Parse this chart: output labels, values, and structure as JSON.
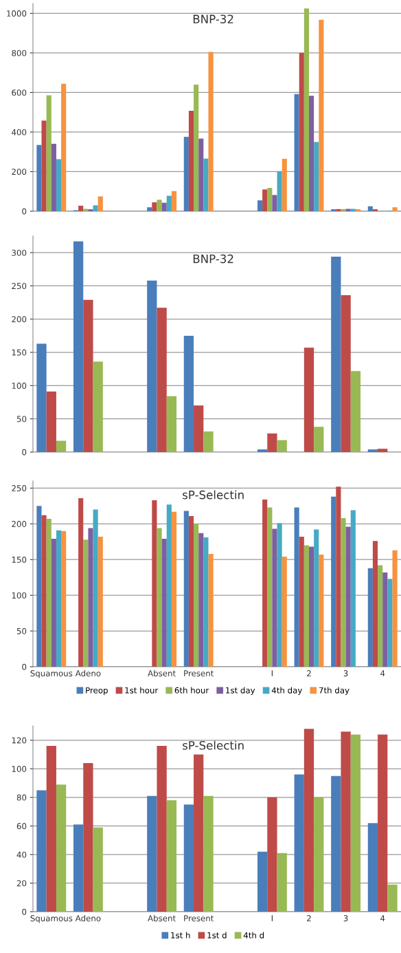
{
  "chart_data": [
    {
      "type": "bar",
      "title": "BNP-32",
      "categories": [
        null,
        null,
        null,
        null,
        null,
        null,
        null,
        null,
        null,
        null
      ],
      "tick_labels": "y",
      "ylim": [
        0,
        1050
      ],
      "yticks": [
        0,
        200,
        400,
        600,
        800,
        1000
      ],
      "grid": "y",
      "legend": false,
      "series": [
        {
          "color": "#4a7ebb",
          "values": [
            335,
            5,
            null,
            20,
            376,
            null,
            55,
            592,
            10,
            25
          ]
        },
        {
          "color": "#be4b48",
          "values": [
            458,
            28,
            null,
            45,
            508,
            null,
            110,
            800,
            11,
            10
          ]
        },
        {
          "color": "#98b954",
          "values": [
            586,
            12,
            null,
            58,
            640,
            null,
            118,
            1025,
            11,
            0
          ]
        },
        {
          "color": "#7d60a0",
          "values": [
            341,
            10,
            null,
            43,
            367,
            null,
            82,
            583,
            12,
            0
          ]
        },
        {
          "color": "#46aac5",
          "values": [
            263,
            30,
            null,
            78,
            266,
            null,
            202,
            350,
            12,
            3
          ]
        },
        {
          "color": "#f69240",
          "values": [
            644,
            75,
            null,
            102,
            805,
            null,
            265,
            967,
            10,
            20
          ]
        }
      ]
    },
    {
      "type": "bar",
      "title": "BNP-32",
      "categories": [
        null,
        null,
        null,
        null,
        null,
        null,
        null,
        null,
        null,
        null
      ],
      "tick_labels": "y",
      "ylim": [
        0,
        325
      ],
      "yticks": [
        0,
        50,
        100,
        150,
        200,
        250,
        300
      ],
      "grid": "y",
      "legend": false,
      "series": [
        {
          "color": "#4a7ebb",
          "values": [
            163,
            317,
            null,
            258,
            175,
            null,
            4,
            null,
            294,
            4
          ]
        },
        {
          "color": "#be4b48",
          "values": [
            91,
            229,
            null,
            217,
            70,
            null,
            28,
            157,
            236,
            5
          ]
        },
        {
          "color": "#98b954",
          "values": [
            17,
            136,
            null,
            84,
            31,
            null,
            18,
            38,
            122,
            0
          ]
        }
      ]
    },
    {
      "type": "bar",
      "title": "sP-Selectin",
      "categories": [
        "Squamous",
        "Adeno",
        null,
        "Absent",
        "Present",
        null,
        "I",
        "2",
        "3",
        "4"
      ],
      "ylim": [
        0,
        260
      ],
      "yticks": [
        0,
        50,
        100,
        150,
        200,
        250
      ],
      "grid": "y",
      "legend": "bottom",
      "series": [
        {
          "name": "Preop",
          "color": "#4a7ebb",
          "values": [
            225,
            null,
            null,
            null,
            218,
            null,
            null,
            223,
            238,
            138
          ]
        },
        {
          "name": "1st hour",
          "color": "#be4b48",
          "values": [
            212,
            236,
            null,
            233,
            211,
            null,
            234,
            182,
            252,
            176
          ]
        },
        {
          "name": "6th hour",
          "color": "#98b954",
          "values": [
            207,
            178,
            null,
            194,
            200,
            null,
            223,
            170,
            208,
            142
          ]
        },
        {
          "name": "1st day",
          "color": "#7d60a0",
          "values": [
            179,
            194,
            null,
            179,
            187,
            null,
            193,
            168,
            196,
            132
          ]
        },
        {
          "name": "4th day",
          "color": "#46aac5",
          "values": [
            191,
            220,
            null,
            227,
            181,
            null,
            201,
            192,
            219,
            123
          ]
        },
        {
          "name": "7th day",
          "color": "#f69240",
          "values": [
            190,
            182,
            null,
            217,
            158,
            null,
            154,
            157,
            null,
            163
          ]
        }
      ]
    },
    {
      "type": "bar",
      "title": "sP-Selectin",
      "categories": [
        "Squamous",
        "Adeno",
        null,
        "Absent",
        "Present",
        null,
        "I",
        "2",
        "3",
        "4"
      ],
      "ylim": [
        0,
        130
      ],
      "yticks": [
        0,
        20,
        40,
        60,
        80,
        100,
        120
      ],
      "grid": "y",
      "legend": "bottom",
      "series": [
        {
          "name": "1st h",
          "color": "#4a7ebb",
          "values": [
            85,
            61,
            null,
            81,
            75,
            null,
            42,
            96,
            95,
            62
          ]
        },
        {
          "name": "1st d",
          "color": "#be4b48",
          "values": [
            116,
            104,
            null,
            116,
            110,
            null,
            80,
            128,
            126,
            124
          ]
        },
        {
          "name": "4th d",
          "color": "#98b954",
          "values": [
            89,
            59,
            null,
            78,
            81,
            null,
            41,
            80,
            124,
            19
          ]
        }
      ]
    }
  ]
}
